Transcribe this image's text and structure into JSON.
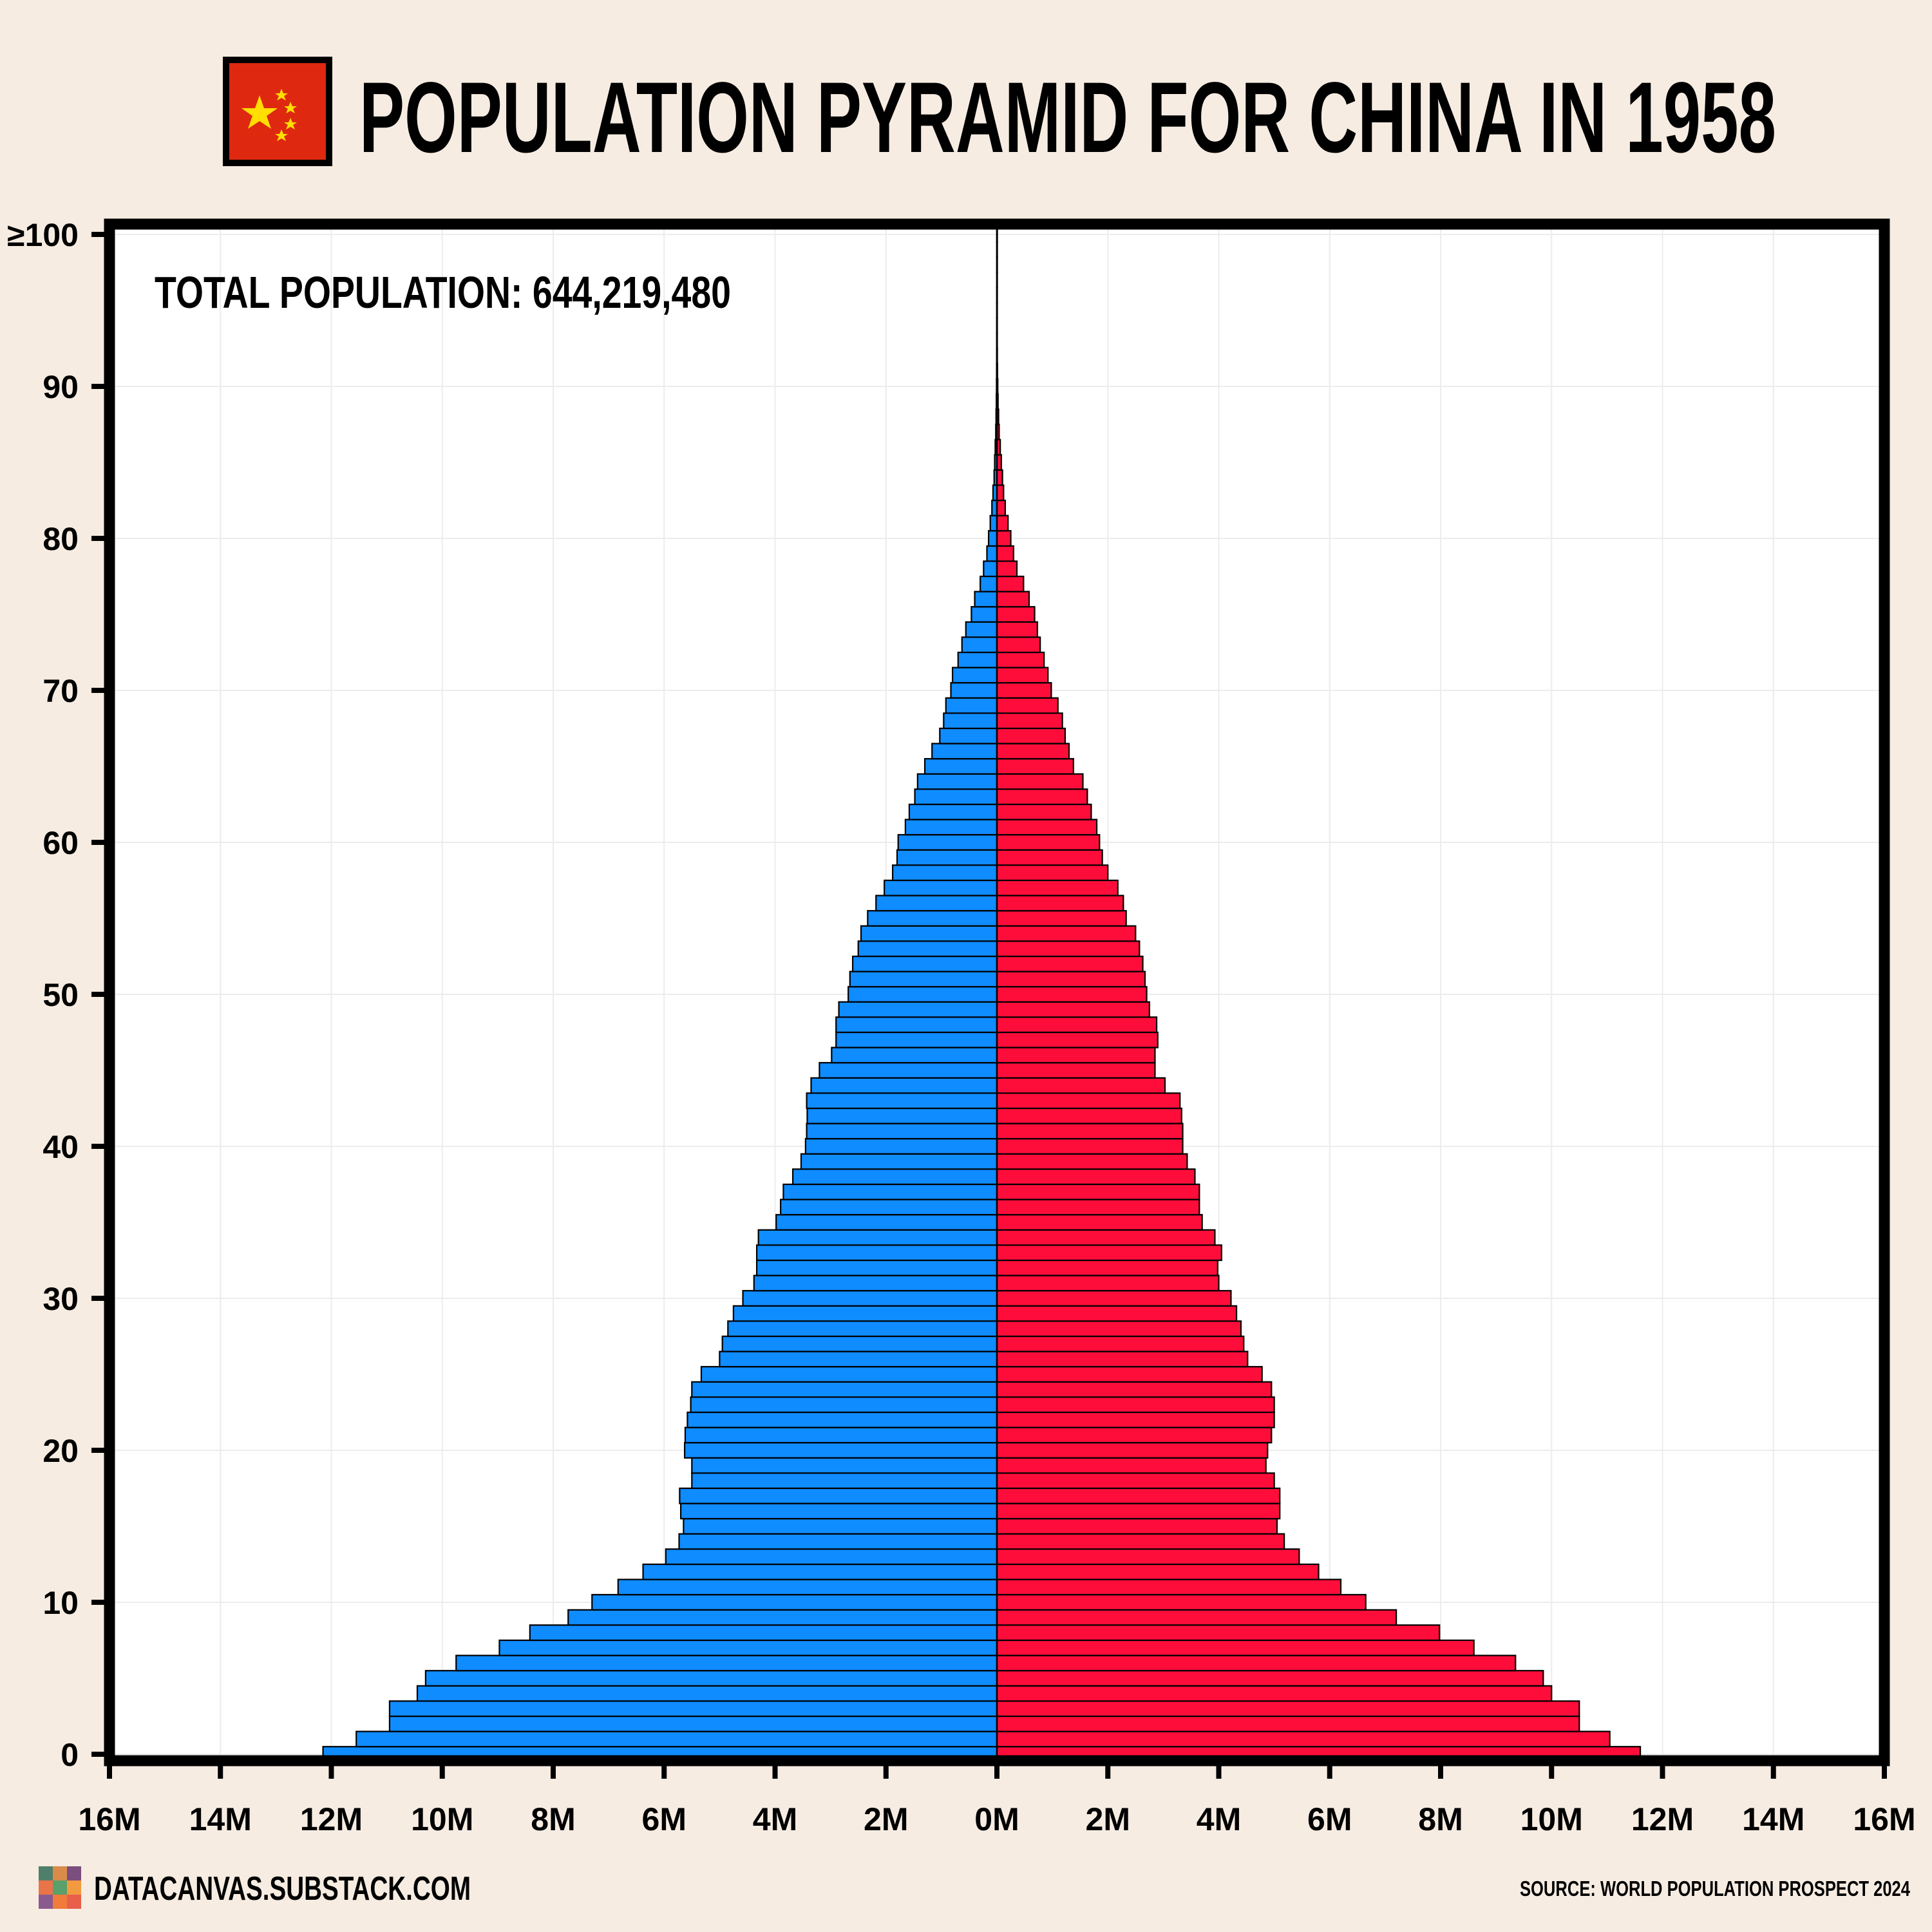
{
  "header": {
    "title": "POPULATION PYRAMID FOR CHINA IN 1958",
    "flag_icon": "china-flag-icon",
    "flag_colors": {
      "field": "#de2910",
      "star": "#ffde00"
    }
  },
  "total_population": "TOTAL POPULATION: 644,219,480",
  "footer": {
    "site": "DATACANVAS.SUBSTACK.COM",
    "site_icon": "datacanvas-logo-icon",
    "source": "SOURCE: WORLD POPULATION PROSPECT 2024"
  },
  "colors": {
    "male": "#0f8cff",
    "female": "#ff0d3a",
    "background": "#f6ece2",
    "plot": "#ffffff"
  },
  "chart_data": {
    "type": "bar",
    "orientation": "horizontal-mirrored",
    "y_label_unit": "age",
    "xlim": [
      -16,
      16
    ],
    "x_unit": "M",
    "x_ticks": [
      -16,
      -14,
      -12,
      -10,
      -8,
      -6,
      -4,
      -2,
      0,
      2,
      4,
      6,
      8,
      10,
      12,
      14,
      16
    ],
    "x_tick_labels": [
      "16M",
      "14M",
      "12M",
      "10M",
      "8M",
      "6M",
      "4M",
      "2M",
      "0M",
      "2M",
      "4M",
      "6M",
      "8M",
      "10M",
      "12M",
      "14M",
      "16M"
    ],
    "y_ticks": [
      0,
      10,
      20,
      30,
      40,
      50,
      60,
      70,
      80,
      90,
      100
    ],
    "y_tick_labels": [
      "0",
      "10",
      "20",
      "30",
      "40",
      "50",
      "60",
      "70",
      "80",
      "90",
      "≥100"
    ],
    "grid": true,
    "ages": [
      0,
      1,
      2,
      3,
      4,
      5,
      6,
      7,
      8,
      9,
      10,
      11,
      12,
      13,
      14,
      15,
      16,
      17,
      18,
      19,
      20,
      21,
      22,
      23,
      24,
      25,
      26,
      27,
      28,
      29,
      30,
      31,
      32,
      33,
      34,
      35,
      36,
      37,
      38,
      39,
      40,
      41,
      42,
      43,
      44,
      45,
      46,
      47,
      48,
      49,
      50,
      51,
      52,
      53,
      54,
      55,
      56,
      57,
      58,
      59,
      60,
      61,
      62,
      63,
      64,
      65,
      66,
      67,
      68,
      69,
      70,
      71,
      72,
      73,
      74,
      75,
      76,
      77,
      78,
      79,
      80,
      81,
      82,
      83,
      84,
      85,
      86,
      87,
      88,
      89,
      90,
      91,
      92,
      93,
      94,
      95,
      96,
      97,
      98,
      99,
      100
    ],
    "series": [
      {
        "side": "left",
        "values": [
          12.15,
          11.55,
          10.95,
          10.95,
          10.45,
          10.3,
          9.75,
          8.97,
          8.42,
          7.73,
          7.3,
          6.83,
          6.38,
          5.97,
          5.73,
          5.65,
          5.7,
          5.72,
          5.5,
          5.5,
          5.63,
          5.62,
          5.58,
          5.52,
          5.5,
          5.33,
          5.0,
          4.95,
          4.85,
          4.75,
          4.58,
          4.38,
          4.33,
          4.33,
          4.3,
          3.98,
          3.9,
          3.85,
          3.68,
          3.53,
          3.45,
          3.43,
          3.42,
          3.43,
          3.35,
          3.2,
          2.98,
          2.9,
          2.9,
          2.85,
          2.68,
          2.65,
          2.6,
          2.5,
          2.45,
          2.33,
          2.18,
          2.03,
          1.88,
          1.8,
          1.78,
          1.65,
          1.58,
          1.48,
          1.43,
          1.3,
          1.17,
          1.03,
          0.96,
          0.92,
          0.83,
          0.8,
          0.7,
          0.63,
          0.56,
          0.46,
          0.4,
          0.3,
          0.24,
          0.18,
          0.15,
          0.12,
          0.09,
          0.07,
          0.05,
          0.04,
          0.03,
          0.02,
          0.015,
          0.01,
          0.007,
          0.005,
          0.003,
          0.002,
          0.0015,
          0.001,
          0.0007,
          0.0005,
          0.0003,
          0.0002,
          0.0001
        ]
      },
      {
        "side": "right",
        "values": [
          11.6,
          11.05,
          10.5,
          10.5,
          10.0,
          9.85,
          9.35,
          8.6,
          7.98,
          7.2,
          6.65,
          6.2,
          5.8,
          5.45,
          5.18,
          5.05,
          5.1,
          5.1,
          5.0,
          4.85,
          4.88,
          4.95,
          5.0,
          5.0,
          4.95,
          4.78,
          4.52,
          4.45,
          4.4,
          4.32,
          4.22,
          4.0,
          3.98,
          4.05,
          3.93,
          3.7,
          3.65,
          3.65,
          3.57,
          3.43,
          3.35,
          3.35,
          3.33,
          3.3,
          3.03,
          2.85,
          2.85,
          2.9,
          2.88,
          2.75,
          2.7,
          2.67,
          2.63,
          2.57,
          2.5,
          2.33,
          2.28,
          2.18,
          2.0,
          1.9,
          1.85,
          1.8,
          1.7,
          1.63,
          1.55,
          1.38,
          1.3,
          1.23,
          1.18,
          1.1,
          0.98,
          0.92,
          0.85,
          0.78,
          0.73,
          0.68,
          0.58,
          0.48,
          0.36,
          0.3,
          0.25,
          0.2,
          0.15,
          0.12,
          0.1,
          0.08,
          0.06,
          0.04,
          0.03,
          0.02,
          0.015,
          0.01,
          0.007,
          0.005,
          0.003,
          0.002,
          0.0015,
          0.001,
          0.0007,
          0.0005,
          0.0003
        ]
      }
    ]
  }
}
